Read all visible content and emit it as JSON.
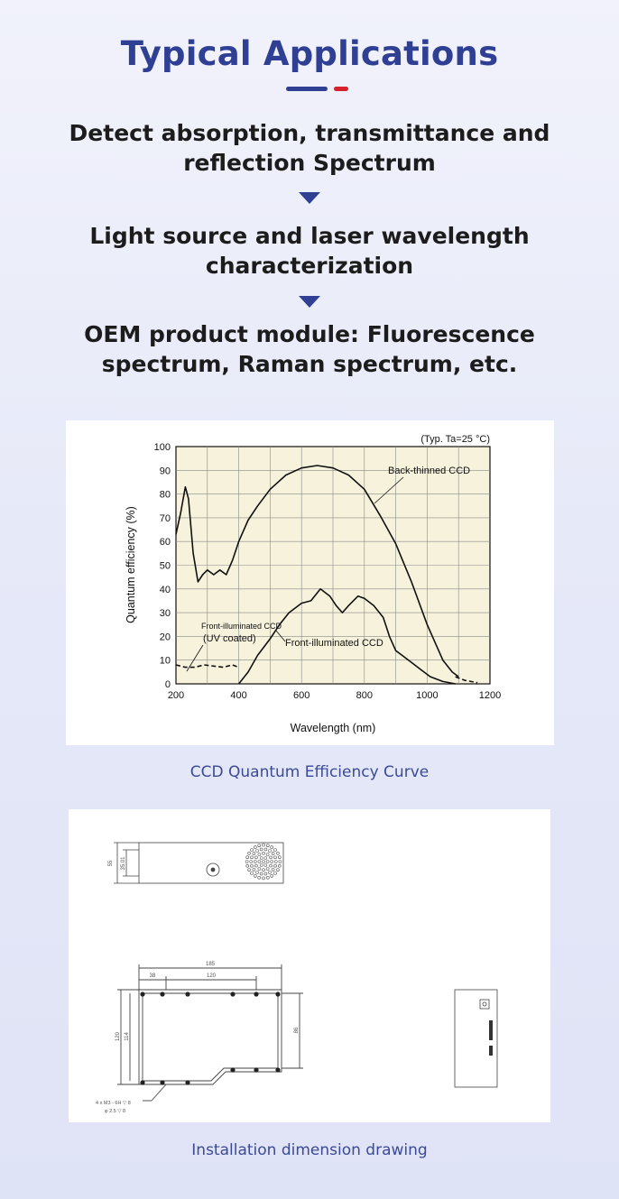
{
  "header": {
    "title": "Typical Applications"
  },
  "applications": [
    {
      "line1": "Detect absorption, transmittance and",
      "line2": "reflection Spectrum"
    },
    {
      "line1": "Light source and laser wavelength",
      "line2": "characterization"
    },
    {
      "line1": "OEM product module: Fluorescence",
      "line2": "spectrum, Raman spectrum, etc."
    }
  ],
  "colors": {
    "accent_blue": "#2f3f94",
    "accent_red": "#d6202b"
  },
  "icons": [
    "triangle-down-icon"
  ],
  "chart_data": {
    "type": "line",
    "title": "",
    "note": "(Typ. Ta=25 °C)",
    "xlabel": "Wavelength (nm)",
    "ylabel": "Quantum efficiency (%)",
    "xlim": [
      200,
      1200
    ],
    "ylim": [
      0,
      100
    ],
    "x_ticks": [
      200,
      400,
      600,
      800,
      1000,
      1200
    ],
    "y_ticks": [
      0,
      10,
      20,
      30,
      40,
      50,
      60,
      70,
      80,
      90,
      100
    ],
    "grid": true,
    "series": [
      {
        "name": "Back-thinned CCD",
        "style": "solid",
        "points": [
          [
            200,
            63
          ],
          [
            215,
            72
          ],
          [
            230,
            83
          ],
          [
            240,
            78
          ],
          [
            255,
            55
          ],
          [
            270,
            43
          ],
          [
            285,
            46
          ],
          [
            300,
            48
          ],
          [
            320,
            46
          ],
          [
            340,
            48
          ],
          [
            360,
            46
          ],
          [
            380,
            52
          ],
          [
            400,
            60
          ],
          [
            430,
            69
          ],
          [
            460,
            75
          ],
          [
            500,
            82
          ],
          [
            550,
            88
          ],
          [
            600,
            91
          ],
          [
            650,
            92
          ],
          [
            700,
            91
          ],
          [
            750,
            88
          ],
          [
            800,
            82
          ],
          [
            850,
            71
          ],
          [
            900,
            59
          ],
          [
            950,
            43
          ],
          [
            1000,
            25
          ],
          [
            1050,
            10
          ],
          [
            1080,
            5
          ],
          [
            1100,
            3
          ]
        ]
      },
      {
        "name": "Front-illuminated CCD",
        "style": "solid",
        "points": [
          [
            400,
            0
          ],
          [
            430,
            5
          ],
          [
            460,
            12
          ],
          [
            500,
            19
          ],
          [
            530,
            25
          ],
          [
            560,
            30
          ],
          [
            600,
            34
          ],
          [
            630,
            35
          ],
          [
            660,
            40
          ],
          [
            690,
            37
          ],
          [
            710,
            33
          ],
          [
            730,
            30
          ],
          [
            750,
            33
          ],
          [
            780,
            37
          ],
          [
            800,
            36
          ],
          [
            830,
            33
          ],
          [
            860,
            28
          ],
          [
            880,
            20
          ],
          [
            900,
            14
          ],
          [
            920,
            12
          ],
          [
            950,
            9
          ],
          [
            980,
            6
          ],
          [
            1010,
            3
          ],
          [
            1050,
            1
          ],
          [
            1090,
            0
          ]
        ]
      },
      {
        "name": "Front-illuminated CCD (UV coated)",
        "label_line1": "Front-illuminated CCD",
        "label_line2": "(UV coated)",
        "style": "dashed",
        "points": [
          [
            200,
            8
          ],
          [
            230,
            7
          ],
          [
            260,
            7
          ],
          [
            290,
            8
          ],
          [
            320,
            7.5
          ],
          [
            350,
            7
          ],
          [
            380,
            8
          ],
          [
            400,
            7
          ]
        ],
        "tail": [
          [
            1090,
            3
          ],
          [
            1120,
            1.5
          ],
          [
            1160,
            0.5
          ]
        ]
      }
    ]
  },
  "captions": {
    "chart": "CCD Quantum Efficiency Curve",
    "drawing": "Installation dimension drawing"
  },
  "drawing": {
    "top_dims": [
      "55",
      "35.01"
    ],
    "width_dims": [
      "185",
      "38",
      "120"
    ],
    "height_dims": [
      "120",
      "114"
    ],
    "right_dim": "86",
    "hole_note_line1": "4 x M3 - 6H ▽ 8",
    "hole_note_line2": "φ 2.5 ▽ 8"
  }
}
